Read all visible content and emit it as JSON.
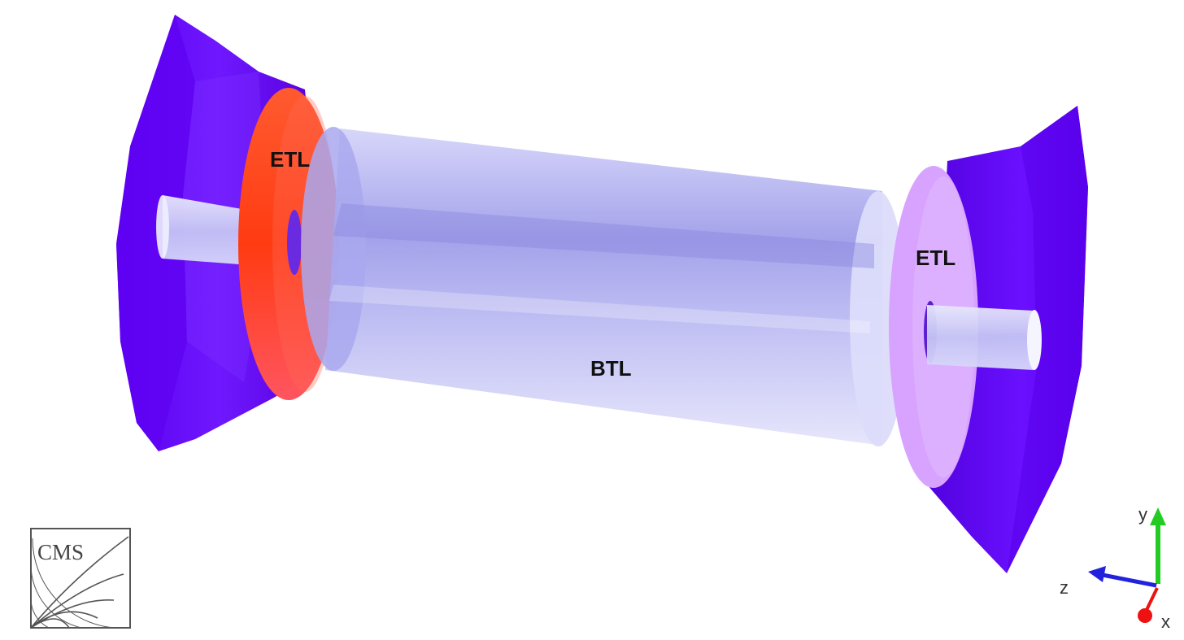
{
  "labels": {
    "etl_left": "ETL",
    "etl_right": "ETL",
    "btl": "BTL"
  },
  "axes": {
    "y": "y",
    "z": "z",
    "x": "x"
  },
  "logo": {
    "text": "CMS"
  },
  "colors": {
    "endcap_blue": "#6A00FF",
    "etl_left": "#FF4A1C",
    "etl_right": "#D9A6FF",
    "barrel": "#BDBDF7",
    "axis_y": "#22CC22",
    "axis_z": "#2222DD",
    "axis_x": "#EE1111"
  }
}
